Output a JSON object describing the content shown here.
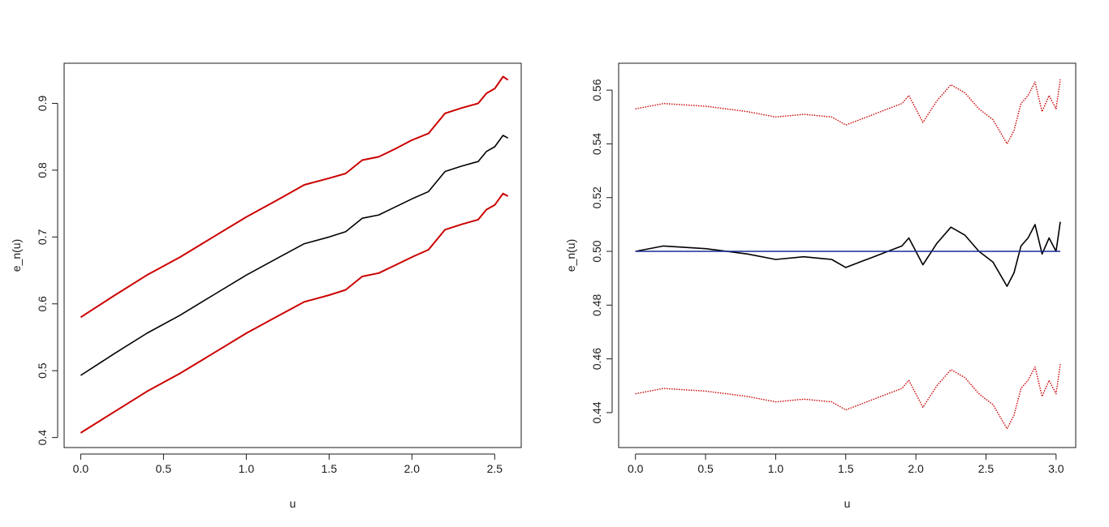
{
  "chart_data": [
    {
      "type": "line",
      "title": "",
      "xlabel": "u",
      "ylabel": "e_n(u)",
      "xlim": [
        -0.1,
        2.66
      ],
      "ylim": [
        0.385,
        0.96
      ],
      "xticks": [
        0.0,
        0.5,
        1.0,
        1.5,
        2.0,
        2.5
      ],
      "xtick_labels": [
        "0.0",
        "0.5",
        "1.0",
        "1.5",
        "2.0",
        "2.5"
      ],
      "yticks": [
        0.4,
        0.5,
        0.6,
        0.7,
        0.8,
        0.9
      ],
      "ytick_labels": [
        "0.4",
        "0.5",
        "0.6",
        "0.7",
        "0.8",
        "0.9"
      ],
      "grid": false,
      "series": [
        {
          "color": "#cc0000",
          "style": "solid",
          "x": [
            0.0,
            0.2,
            0.4,
            0.6,
            0.8,
            1.0,
            1.2,
            1.35,
            1.5,
            1.6,
            1.7,
            1.8,
            1.9,
            2.0,
            2.1,
            2.2,
            2.3,
            2.4,
            2.45,
            2.5,
            2.55,
            2.58
          ],
          "y": [
            0.58,
            0.612,
            0.643,
            0.67,
            0.7,
            0.73,
            0.757,
            0.778,
            0.788,
            0.795,
            0.815,
            0.82,
            0.832,
            0.845,
            0.855,
            0.885,
            0.893,
            0.9,
            0.915,
            0.922,
            0.94,
            0.935
          ]
        },
        {
          "color": "#000000",
          "style": "solid",
          "x": [
            0.0,
            0.2,
            0.4,
            0.6,
            0.8,
            1.0,
            1.2,
            1.35,
            1.5,
            1.6,
            1.7,
            1.8,
            1.9,
            2.0,
            2.1,
            2.2,
            2.3,
            2.4,
            2.45,
            2.5,
            2.55,
            2.58
          ],
          "y": [
            0.493,
            0.525,
            0.556,
            0.583,
            0.613,
            0.643,
            0.67,
            0.69,
            0.7,
            0.708,
            0.728,
            0.733,
            0.745,
            0.757,
            0.768,
            0.798,
            0.806,
            0.813,
            0.828,
            0.835,
            0.852,
            0.848
          ]
        },
        {
          "color": "#cc0000",
          "style": "solid",
          "x": [
            0.0,
            0.2,
            0.4,
            0.6,
            0.8,
            1.0,
            1.2,
            1.35,
            1.5,
            1.6,
            1.7,
            1.8,
            1.9,
            2.0,
            2.1,
            2.2,
            2.3,
            2.4,
            2.45,
            2.5,
            2.55,
            2.58
          ],
          "y": [
            0.407,
            0.438,
            0.469,
            0.496,
            0.526,
            0.556,
            0.583,
            0.603,
            0.613,
            0.621,
            0.641,
            0.646,
            0.658,
            0.67,
            0.681,
            0.711,
            0.719,
            0.726,
            0.741,
            0.748,
            0.765,
            0.761
          ]
        }
      ]
    },
    {
      "type": "line",
      "title": "",
      "xlabel": "u",
      "ylabel": "e_n(u)",
      "xlim": [
        -0.12,
        3.14
      ],
      "ylim": [
        0.427,
        0.57
      ],
      "xticks": [
        0.0,
        0.5,
        1.0,
        1.5,
        2.0,
        2.5,
        3.0
      ],
      "xtick_labels": [
        "0.0",
        "0.5",
        "1.0",
        "1.5",
        "2.0",
        "2.5",
        "3.0"
      ],
      "yticks": [
        0.44,
        0.46,
        0.48,
        0.5,
        0.52,
        0.54,
        0.56
      ],
      "ytick_labels": [
        "0.44",
        "0.46",
        "0.48",
        "0.50",
        "0.52",
        "0.54",
        "0.56"
      ],
      "grid": false,
      "series": [
        {
          "color": "#cc0000",
          "style": "dotted",
          "x": [
            0.0,
            0.2,
            0.5,
            0.8,
            1.0,
            1.2,
            1.4,
            1.5,
            1.6,
            1.7,
            1.8,
            1.9,
            1.95,
            2.05,
            2.15,
            2.25,
            2.35,
            2.45,
            2.55,
            2.65,
            2.7,
            2.75,
            2.8,
            2.85,
            2.9,
            2.95,
            3.0,
            3.03
          ],
          "y": [
            0.553,
            0.555,
            0.554,
            0.552,
            0.55,
            0.551,
            0.55,
            0.547,
            0.549,
            0.551,
            0.553,
            0.555,
            0.558,
            0.548,
            0.556,
            0.562,
            0.559,
            0.553,
            0.549,
            0.54,
            0.545,
            0.555,
            0.558,
            0.563,
            0.552,
            0.558,
            0.553,
            0.564
          ]
        },
        {
          "color": "#000000",
          "style": "solid",
          "x": [
            0.0,
            0.2,
            0.5,
            0.8,
            1.0,
            1.2,
            1.4,
            1.5,
            1.6,
            1.7,
            1.8,
            1.9,
            1.95,
            2.05,
            2.15,
            2.25,
            2.35,
            2.45,
            2.55,
            2.65,
            2.7,
            2.75,
            2.8,
            2.85,
            2.9,
            2.95,
            3.0,
            3.03
          ],
          "y": [
            0.5,
            0.502,
            0.501,
            0.499,
            0.497,
            0.498,
            0.497,
            0.494,
            0.496,
            0.498,
            0.5,
            0.502,
            0.505,
            0.495,
            0.503,
            0.509,
            0.506,
            0.5,
            0.496,
            0.487,
            0.492,
            0.502,
            0.505,
            0.51,
            0.499,
            0.505,
            0.5,
            0.511
          ]
        },
        {
          "color": "#cc0000",
          "style": "dotted",
          "x": [
            0.0,
            0.2,
            0.5,
            0.8,
            1.0,
            1.2,
            1.4,
            1.5,
            1.6,
            1.7,
            1.8,
            1.9,
            1.95,
            2.05,
            2.15,
            2.25,
            2.35,
            2.45,
            2.55,
            2.65,
            2.7,
            2.75,
            2.8,
            2.85,
            2.9,
            2.95,
            3.0,
            3.03
          ],
          "y": [
            0.447,
            0.449,
            0.448,
            0.446,
            0.444,
            0.445,
            0.444,
            0.441,
            0.443,
            0.445,
            0.447,
            0.449,
            0.452,
            0.442,
            0.45,
            0.456,
            0.453,
            0.447,
            0.443,
            0.434,
            0.439,
            0.449,
            0.452,
            0.457,
            0.446,
            0.452,
            0.447,
            0.458
          ]
        },
        {
          "color": "#1a2a9a",
          "style": "solid",
          "x": [
            0.0,
            3.03
          ],
          "y": [
            0.5,
            0.5
          ]
        }
      ]
    }
  ]
}
